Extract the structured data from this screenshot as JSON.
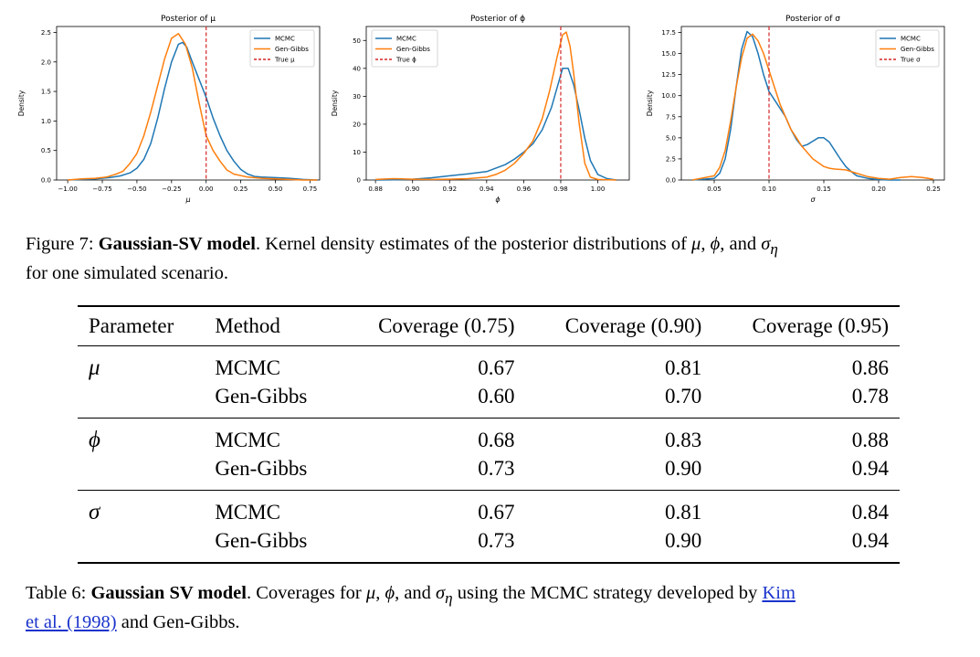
{
  "figure": {
    "series_colors": {
      "MCMC": "#1f77b4",
      "Gen-Gibbs": "#ff7f0e",
      "True": "#d62728"
    },
    "legend_labels": {
      "mcmc": "MCMC",
      "gengibbs": "Gen-Gibbs"
    },
    "y_axis_label": "Density"
  },
  "chart_data": [
    {
      "type": "line",
      "title": "Posterior of μ",
      "xlabel": "μ",
      "ylabel": "Density",
      "xlim": [
        -1.08,
        0.82
      ],
      "ylim": [
        0,
        2.6
      ],
      "xticks": [
        -1.0,
        -0.75,
        -0.5,
        -0.25,
        0.0,
        0.25,
        0.5,
        0.75
      ],
      "xtick_labels": [
        "−1.00",
        "−0.75",
        "−0.50",
        "−0.25",
        "0.00",
        "0.25",
        "0.50",
        "0.75"
      ],
      "yticks": [
        0.0,
        0.5,
        1.0,
        1.5,
        2.0,
        2.5
      ],
      "ytick_labels": [
        "0.0",
        "0.5",
        "1.0",
        "1.5",
        "2.0",
        "2.5"
      ],
      "true_value": 0.0,
      "true_label": "True μ",
      "legend_position": "top-right",
      "series": [
        {
          "name": "MCMC",
          "x": [
            -1.0,
            -0.9,
            -0.8,
            -0.7,
            -0.62,
            -0.55,
            -0.5,
            -0.45,
            -0.4,
            -0.35,
            -0.3,
            -0.25,
            -0.2,
            -0.17,
            -0.14,
            -0.1,
            -0.05,
            0.0,
            0.05,
            0.1,
            0.15,
            0.2,
            0.25,
            0.3,
            0.35,
            0.4,
            0.5,
            0.6,
            0.7,
            0.8
          ],
          "y": [
            0.0,
            0.01,
            0.02,
            0.04,
            0.07,
            0.12,
            0.2,
            0.35,
            0.62,
            1.05,
            1.55,
            2.0,
            2.3,
            2.33,
            2.25,
            2.0,
            1.7,
            1.4,
            1.05,
            0.75,
            0.5,
            0.32,
            0.18,
            0.1,
            0.06,
            0.05,
            0.04,
            0.03,
            0.01,
            0.0
          ]
        },
        {
          "name": "Gen-Gibbs",
          "x": [
            -1.0,
            -0.9,
            -0.8,
            -0.72,
            -0.65,
            -0.6,
            -0.55,
            -0.5,
            -0.45,
            -0.4,
            -0.35,
            -0.3,
            -0.25,
            -0.2,
            -0.15,
            -0.1,
            -0.05,
            0.0,
            0.05,
            0.1,
            0.15,
            0.2,
            0.3,
            0.4,
            0.5,
            0.6,
            0.7,
            0.8
          ],
          "y": [
            0.0,
            0.02,
            0.03,
            0.05,
            0.1,
            0.15,
            0.28,
            0.45,
            0.75,
            1.15,
            1.6,
            2.05,
            2.4,
            2.48,
            2.3,
            1.9,
            1.3,
            0.75,
            0.5,
            0.32,
            0.17,
            0.1,
            0.05,
            0.03,
            0.02,
            0.01,
            0.0,
            0.0
          ]
        }
      ]
    },
    {
      "type": "line",
      "title": "Posterior of ϕ",
      "xlabel": "ϕ",
      "ylabel": "Density",
      "xlim": [
        0.875,
        1.017
      ],
      "ylim": [
        0,
        55
      ],
      "xticks": [
        0.88,
        0.9,
        0.92,
        0.94,
        0.96,
        0.98,
        1.0
      ],
      "xtick_labels": [
        "0.88",
        "0.90",
        "0.92",
        "0.94",
        "0.96",
        "0.98",
        "1.00"
      ],
      "yticks": [
        0,
        10,
        20,
        30,
        40,
        50
      ],
      "ytick_labels": [
        "0",
        "10",
        "20",
        "30",
        "40",
        "50"
      ],
      "true_value": 0.98,
      "true_label": "True ϕ",
      "legend_position": "top-left",
      "series": [
        {
          "name": "MCMC",
          "x": [
            0.88,
            0.89,
            0.9,
            0.91,
            0.92,
            0.93,
            0.94,
            0.95,
            0.955,
            0.96,
            0.965,
            0.97,
            0.975,
            0.978,
            0.981,
            0.984,
            0.987,
            0.99,
            0.993,
            0.996,
            1.0,
            1.005,
            1.01
          ],
          "y": [
            0.0,
            0.1,
            0.3,
            0.8,
            1.5,
            2.2,
            3.0,
            5.5,
            7.5,
            10.0,
            13.0,
            18.0,
            26.0,
            33.0,
            40.0,
            40.0,
            34.0,
            25.0,
            15.0,
            7.0,
            2.0,
            0.5,
            0.0
          ]
        },
        {
          "name": "Gen-Gibbs",
          "x": [
            0.88,
            0.89,
            0.9,
            0.91,
            0.92,
            0.93,
            0.94,
            0.945,
            0.95,
            0.955,
            0.96,
            0.965,
            0.97,
            0.974,
            0.978,
            0.981,
            0.983,
            0.985,
            0.987,
            0.99,
            0.993,
            0.996,
            1.0,
            1.01
          ],
          "y": [
            0.2,
            0.5,
            0.3,
            0.2,
            0.3,
            0.5,
            1.0,
            2.0,
            3.5,
            6.0,
            9.5,
            14.0,
            22.0,
            32.0,
            44.0,
            52.0,
            53.0,
            48.0,
            38.0,
            20.0,
            6.0,
            1.0,
            0.2,
            0.0
          ]
        }
      ]
    },
    {
      "type": "line",
      "title": "Posterior of σ",
      "xlabel": "σ",
      "ylabel": "Density",
      "xlim": [
        0.02,
        0.26
      ],
      "ylim": [
        0,
        18.2
      ],
      "xticks": [
        0.05,
        0.1,
        0.15,
        0.2,
        0.25
      ],
      "xtick_labels": [
        "0.05",
        "0.10",
        "0.15",
        "0.20",
        "0.25"
      ],
      "yticks": [
        0.0,
        2.5,
        5.0,
        7.5,
        10.0,
        12.5,
        15.0,
        17.5
      ],
      "ytick_labels": [
        "0.0",
        "2.5",
        "5.0",
        "7.5",
        "10.0",
        "12.5",
        "15.0",
        "17.5"
      ],
      "true_value": 0.1,
      "true_label": "True σ",
      "legend_position": "top-right",
      "series": [
        {
          "name": "MCMC",
          "x": [
            0.03,
            0.05,
            0.055,
            0.06,
            0.065,
            0.07,
            0.075,
            0.08,
            0.085,
            0.09,
            0.095,
            0.1,
            0.105,
            0.11,
            0.115,
            0.12,
            0.125,
            0.13,
            0.135,
            0.14,
            0.145,
            0.15,
            0.155,
            0.16,
            0.165,
            0.17,
            0.175,
            0.18,
            0.19,
            0.2,
            0.21,
            0.22
          ],
          "y": [
            0.0,
            0.2,
            0.8,
            2.5,
            6.0,
            11.0,
            15.5,
            17.6,
            17.0,
            15.0,
            12.5,
            10.5,
            9.5,
            8.5,
            7.5,
            6.0,
            4.8,
            4.0,
            4.2,
            4.6,
            5.0,
            5.0,
            4.5,
            3.5,
            2.5,
            1.6,
            1.0,
            0.5,
            0.2,
            0.05,
            0.0,
            0.0
          ]
        },
        {
          "name": "Gen-Gibbs",
          "x": [
            0.03,
            0.05,
            0.055,
            0.06,
            0.065,
            0.07,
            0.075,
            0.08,
            0.085,
            0.09,
            0.095,
            0.1,
            0.105,
            0.11,
            0.115,
            0.12,
            0.125,
            0.13,
            0.14,
            0.15,
            0.155,
            0.16,
            0.17,
            0.18,
            0.19,
            0.2,
            0.21,
            0.22,
            0.23,
            0.24,
            0.25
          ],
          "y": [
            0.0,
            0.5,
            1.5,
            3.5,
            7.0,
            11.0,
            14.5,
            16.8,
            17.3,
            16.5,
            15.0,
            13.0,
            11.0,
            9.0,
            7.5,
            6.0,
            5.0,
            4.0,
            2.5,
            1.6,
            1.4,
            1.3,
            1.2,
            0.8,
            0.4,
            0.2,
            0.1,
            0.3,
            0.4,
            0.3,
            0.1
          ]
        }
      ]
    }
  ],
  "figure_caption": {
    "label": "Figure 7:",
    "bold": "Gaussian-SV model",
    "text_1": ". Kernel density estimates of the posterior distributions of ",
    "mu": "μ",
    "sep_1": ", ",
    "phi": "ϕ",
    "sep_2": ", and ",
    "sigma": "σ",
    "eta": "η",
    "line_2": "for one simulated scenario."
  },
  "table": {
    "headers": [
      "Parameter",
      "Method",
      "Coverage (0.75)",
      "Coverage (0.90)",
      "Coverage (0.95)"
    ],
    "groups": [
      {
        "param": "μ",
        "rows": [
          {
            "method": "MCMC",
            "values": [
              "0.67",
              "0.81",
              "0.86"
            ]
          },
          {
            "method": "Gen-Gibbs",
            "values": [
              "0.60",
              "0.70",
              "0.78"
            ]
          }
        ]
      },
      {
        "param": "ϕ",
        "rows": [
          {
            "method": "MCMC",
            "values": [
              "0.68",
              "0.83",
              "0.88"
            ]
          },
          {
            "method": "Gen-Gibbs",
            "values": [
              "0.73",
              "0.90",
              "0.94"
            ]
          }
        ]
      },
      {
        "param": "σ",
        "rows": [
          {
            "method": "MCMC",
            "values": [
              "0.67",
              "0.81",
              "0.84"
            ]
          },
          {
            "method": "Gen-Gibbs",
            "values": [
              "0.73",
              "0.90",
              "0.94"
            ]
          }
        ]
      }
    ]
  },
  "table_caption": {
    "label": "Table 6:",
    "bold": "Gaussian SV model",
    "text_1": ". Coverages for ",
    "mu": "μ",
    "sep_1": ", ",
    "phi": "ϕ",
    "sep_2": ", and ",
    "sigma": "σ",
    "eta": "η",
    "text_2": " using the MCMC strategy developed by ",
    "link_1": "Kim",
    "link_2": "et al. (1998)",
    "text_3": " and Gen-Gibbs."
  }
}
